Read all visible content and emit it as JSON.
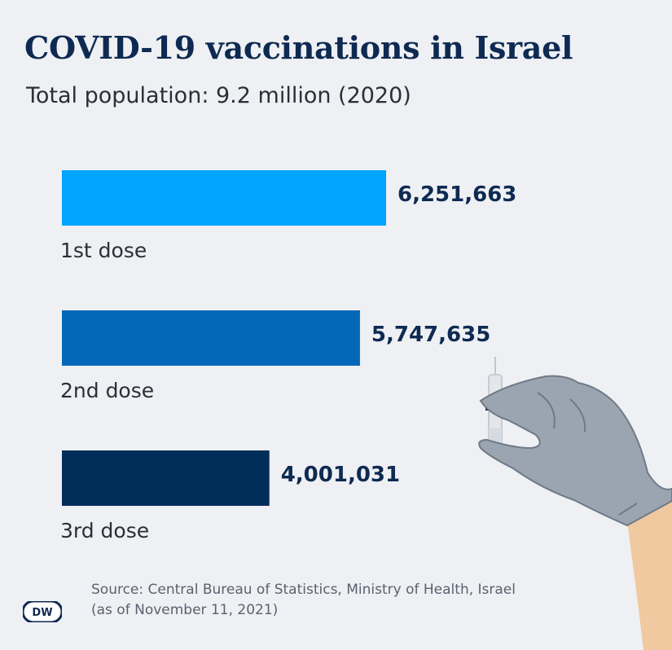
{
  "title": "COVID-19 vaccinations in Israel",
  "subtitle": "Total population: 9.2 million (2020)",
  "source_line1": "Source: Central Bureau of Statistics, Ministry of Health, Israel",
  "source_line2": "(as of November 11, 2021)",
  "logo_text": "DW",
  "colors": {
    "dose1": "#00a5ff",
    "dose2": "#0468b9",
    "dose3": "#002d5a",
    "value_text": "#0e2a52",
    "label_text": "#2b2f36"
  },
  "chart_data": {
    "type": "bar",
    "orientation": "horizontal",
    "categories": [
      "1st dose",
      "2nd dose",
      "3rd dose"
    ],
    "values": [
      6251663,
      5747635,
      4001031
    ],
    "value_labels": [
      "6,251,663",
      "5,747,635",
      "4,001,031"
    ],
    "title": "COVID-19 vaccinations in Israel",
    "subtitle": "Total population: 9.2 million (2020)",
    "xlabel": "",
    "ylabel": "",
    "xlim": [
      0,
      6251663
    ],
    "grid": false,
    "legend": "none"
  }
}
